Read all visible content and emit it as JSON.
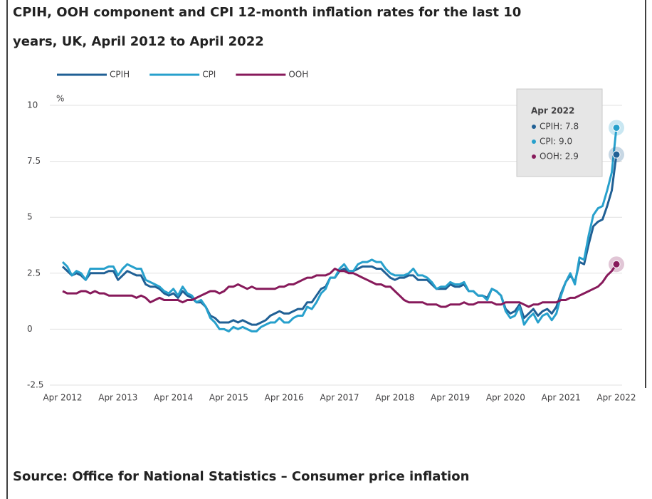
{
  "chart_data": {
    "type": "line",
    "title": "CPIH, OOH component and CPI 12-month inflation rates for the last 10",
    "title_line2": "years, UK, April 2012 to April 2022",
    "source": "Source: Office for National Statistics – Consumer price inflation",
    "y_label": "%",
    "ylim": [
      -2.5,
      10
    ],
    "yticks": [
      -2.5,
      0,
      2.5,
      5,
      7.5,
      10
    ],
    "grid": true,
    "legend": "top",
    "categories": [
      "Apr 2012",
      null,
      null,
      null,
      null,
      null,
      null,
      null,
      null,
      null,
      null,
      null,
      "Apr 2013",
      null,
      null,
      null,
      null,
      null,
      null,
      null,
      null,
      null,
      null,
      null,
      "Apr 2014",
      null,
      null,
      null,
      null,
      null,
      null,
      null,
      null,
      null,
      null,
      null,
      "Apr 2015",
      null,
      null,
      null,
      null,
      null,
      null,
      null,
      null,
      null,
      null,
      null,
      "Apr 2016",
      null,
      null,
      null,
      null,
      null,
      null,
      null,
      null,
      null,
      null,
      null,
      "Apr 2017",
      null,
      null,
      null,
      null,
      null,
      null,
      null,
      null,
      null,
      null,
      null,
      "Apr 2018",
      null,
      null,
      null,
      null,
      null,
      null,
      null,
      null,
      null,
      null,
      null,
      "Apr 2019",
      null,
      null,
      null,
      null,
      null,
      null,
      null,
      null,
      null,
      null,
      null,
      "Apr 2020",
      null,
      null,
      null,
      null,
      null,
      null,
      null,
      null,
      null,
      null,
      null,
      "Apr 2021",
      null,
      null,
      null,
      null,
      null,
      null,
      null,
      null,
      null,
      null,
      null,
      "Apr 2022"
    ],
    "series": [
      {
        "name": "CPIH",
        "color": "#206095",
        "values": [
          2.8,
          2.6,
          2.4,
          2.5,
          2.4,
          2.2,
          2.5,
          2.5,
          2.5,
          2.5,
          2.6,
          2.6,
          2.2,
          2.4,
          2.6,
          2.5,
          2.4,
          2.4,
          2.0,
          1.9,
          1.9,
          1.8,
          1.6,
          1.5,
          1.6,
          1.4,
          1.7,
          1.5,
          1.4,
          1.2,
          1.2,
          1.0,
          0.6,
          0.5,
          0.3,
          0.3,
          0.3,
          0.4,
          0.3,
          0.4,
          0.3,
          0.2,
          0.2,
          0.3,
          0.4,
          0.6,
          0.7,
          0.8,
          0.7,
          0.7,
          0.8,
          0.9,
          0.9,
          1.2,
          1.2,
          1.5,
          1.8,
          1.9,
          2.3,
          2.3,
          2.6,
          2.7,
          2.6,
          2.6,
          2.7,
          2.8,
          2.8,
          2.8,
          2.7,
          2.7,
          2.5,
          2.3,
          2.2,
          2.3,
          2.3,
          2.4,
          2.4,
          2.2,
          2.2,
          2.2,
          2.0,
          1.8,
          1.8,
          1.8,
          2.0,
          1.9,
          1.9,
          2.0,
          1.7,
          1.7,
          1.5,
          1.5,
          1.4,
          1.8,
          1.7,
          1.5,
          0.9,
          0.7,
          0.8,
          1.1,
          0.5,
          0.7,
          0.9,
          0.6,
          0.8,
          0.9,
          0.7,
          1.0,
          1.6,
          2.1,
          2.4,
          2.1,
          3.0,
          2.9,
          3.8,
          4.6,
          4.8,
          4.9,
          5.5,
          6.2,
          7.8
        ]
      },
      {
        "name": "CPI",
        "color": "#27a0cc",
        "values": [
          3.0,
          2.8,
          2.4,
          2.6,
          2.5,
          2.2,
          2.7,
          2.7,
          2.7,
          2.7,
          2.8,
          2.8,
          2.4,
          2.7,
          2.9,
          2.8,
          2.7,
          2.7,
          2.2,
          2.1,
          2.0,
          1.9,
          1.7,
          1.6,
          1.8,
          1.5,
          1.9,
          1.6,
          1.5,
          1.2,
          1.3,
          1.0,
          0.5,
          0.3,
          0.0,
          0.0,
          -0.1,
          0.1,
          0.0,
          0.1,
          0.0,
          -0.1,
          -0.1,
          0.1,
          0.2,
          0.3,
          0.3,
          0.5,
          0.3,
          0.3,
          0.5,
          0.6,
          0.6,
          1.0,
          0.9,
          1.2,
          1.6,
          1.8,
          2.3,
          2.3,
          2.7,
          2.9,
          2.6,
          2.6,
          2.9,
          3.0,
          3.0,
          3.1,
          3.0,
          3.0,
          2.7,
          2.5,
          2.4,
          2.4,
          2.4,
          2.5,
          2.7,
          2.4,
          2.4,
          2.3,
          2.1,
          1.8,
          1.9,
          1.9,
          2.1,
          2.0,
          2.0,
          2.1,
          1.7,
          1.7,
          1.5,
          1.5,
          1.3,
          1.8,
          1.7,
          1.5,
          0.8,
          0.5,
          0.6,
          1.0,
          0.2,
          0.5,
          0.7,
          0.3,
          0.6,
          0.7,
          0.4,
          0.7,
          1.5,
          2.1,
          2.5,
          2.0,
          3.2,
          3.1,
          4.2,
          5.1,
          5.4,
          5.5,
          6.2,
          7.0,
          9.0
        ]
      },
      {
        "name": "OOH",
        "color": "#871a5b",
        "values": [
          1.7,
          1.6,
          1.6,
          1.6,
          1.7,
          1.7,
          1.6,
          1.7,
          1.6,
          1.6,
          1.5,
          1.5,
          1.5,
          1.5,
          1.5,
          1.5,
          1.4,
          1.5,
          1.4,
          1.2,
          1.3,
          1.4,
          1.3,
          1.3,
          1.3,
          1.3,
          1.2,
          1.3,
          1.3,
          1.4,
          1.5,
          1.6,
          1.7,
          1.7,
          1.6,
          1.7,
          1.9,
          1.9,
          2.0,
          1.9,
          1.8,
          1.9,
          1.8,
          1.8,
          1.8,
          1.8,
          1.8,
          1.9,
          1.9,
          2.0,
          2.0,
          2.1,
          2.2,
          2.3,
          2.3,
          2.4,
          2.4,
          2.4,
          2.5,
          2.7,
          2.6,
          2.6,
          2.5,
          2.5,
          2.4,
          2.3,
          2.2,
          2.1,
          2.0,
          2.0,
          1.9,
          1.9,
          1.7,
          1.5,
          1.3,
          1.2,
          1.2,
          1.2,
          1.2,
          1.1,
          1.1,
          1.1,
          1.0,
          1.0,
          1.1,
          1.1,
          1.1,
          1.2,
          1.1,
          1.1,
          1.2,
          1.2,
          1.2,
          1.2,
          1.1,
          1.1,
          1.2,
          1.2,
          1.2,
          1.2,
          1.1,
          1.0,
          1.1,
          1.1,
          1.2,
          1.2,
          1.2,
          1.2,
          1.3,
          1.3,
          1.4,
          1.4,
          1.5,
          1.6,
          1.7,
          1.8,
          1.9,
          2.1,
          2.4,
          2.6,
          2.9
        ]
      }
    ],
    "tooltip": {
      "title": "Apr 2022",
      "items": [
        "CPIH: 7.8",
        "CPI: 9.0",
        "OOH: 2.9"
      ]
    }
  }
}
